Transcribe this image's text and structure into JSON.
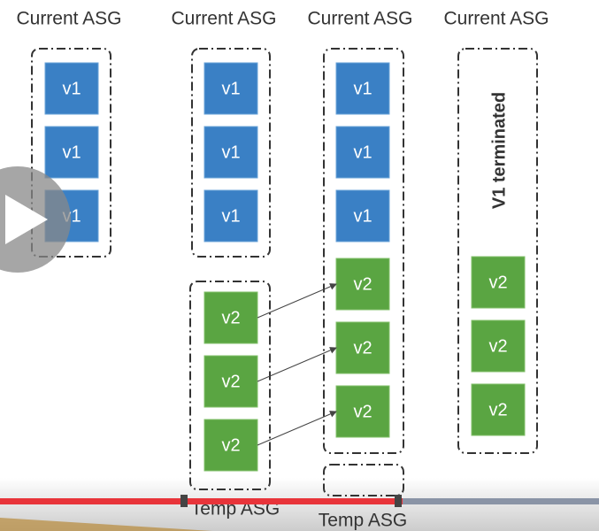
{
  "columns": [
    {
      "header": "Current ASG",
      "current": [
        "v1",
        "v1",
        "v1"
      ]
    },
    {
      "header": "Current ASG",
      "current": [
        "v1",
        "v1",
        "v1"
      ],
      "temp": [
        "v2",
        "v2",
        "v2"
      ],
      "temp_label": "Temp ASG"
    },
    {
      "header": "Current ASG",
      "current": [
        "v1",
        "v1",
        "v1",
        "v2",
        "v2",
        "v2"
      ],
      "temp_label": "Temp ASG"
    },
    {
      "header": "Current ASG",
      "note": "V1 terminated",
      "current": [
        "v2",
        "v2",
        "v2"
      ]
    }
  ]
}
